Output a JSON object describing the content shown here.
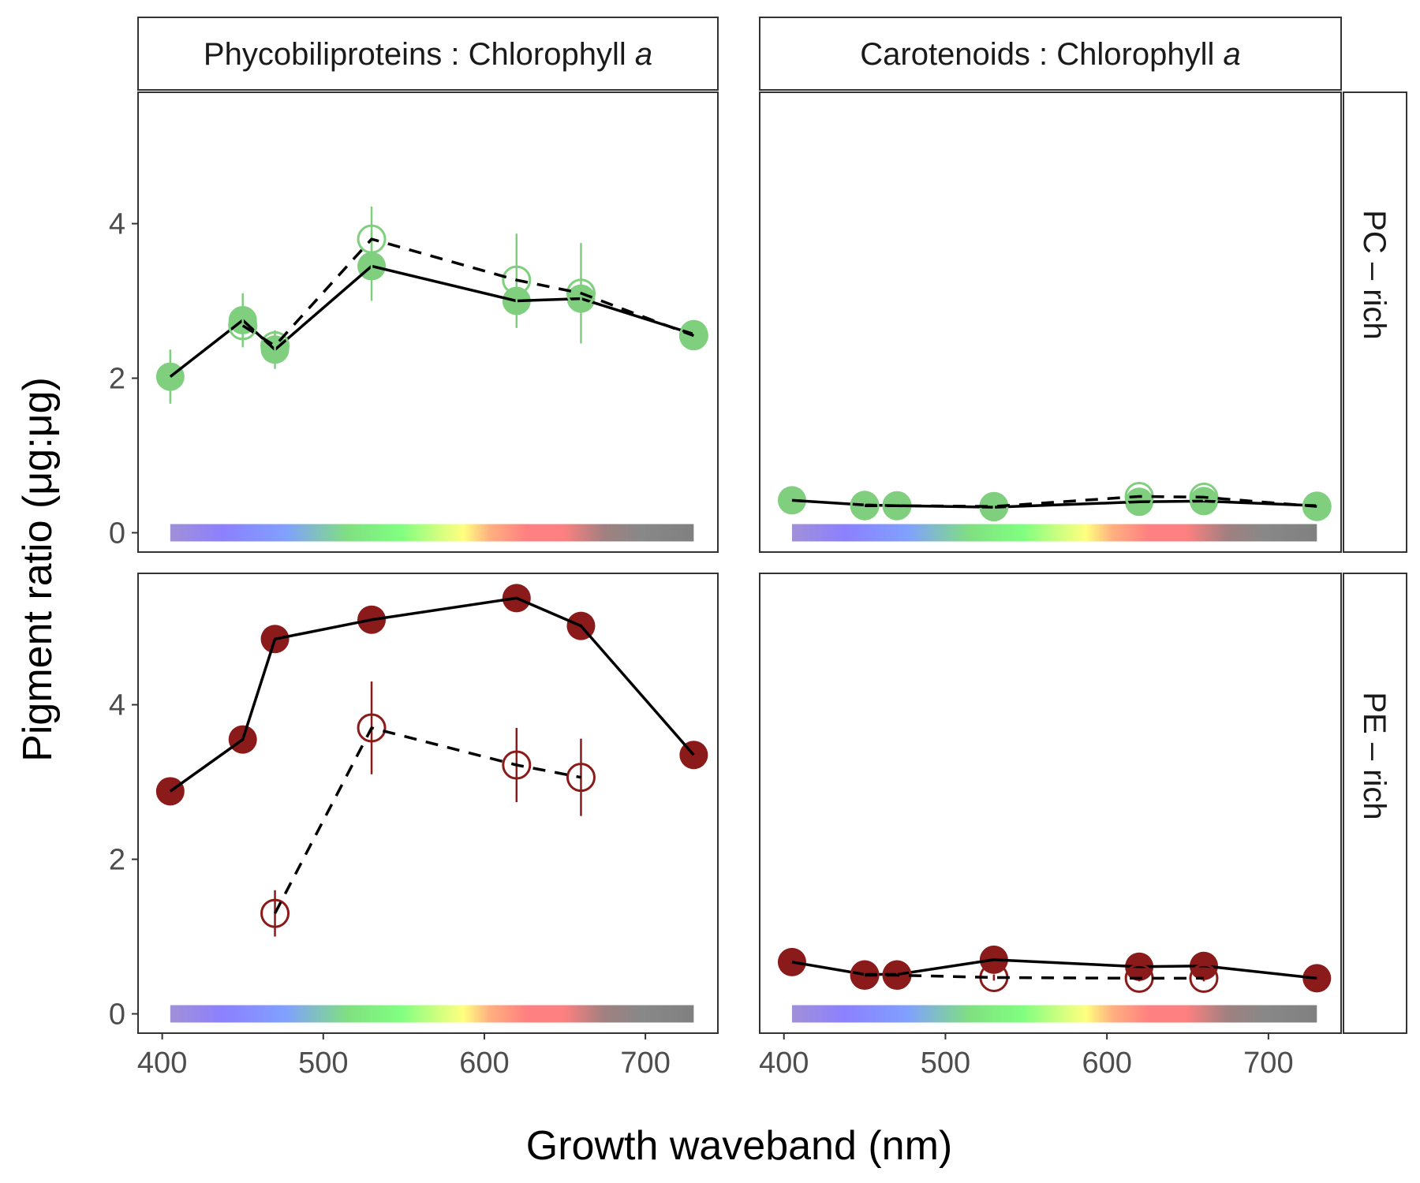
{
  "chart_data": {
    "type": "line",
    "xlabel": "Growth waveband (nm)",
    "ylabel": "Pigment ratio (μg:μg)",
    "xlim": [
      385,
      745
    ],
    "ylim": [
      -0.25,
      5.7
    ],
    "xticks": [
      400,
      500,
      600,
      700
    ],
    "yticks": [
      0,
      2,
      4
    ],
    "columns": [
      {
        "id": "pbp",
        "label_main": "Phycobiliproteins : Chlorophyll ",
        "label_italic": "a"
      },
      {
        "id": "car",
        "label_main": "Carotenoids : Chlorophyll ",
        "label_italic": "a"
      }
    ],
    "rows": [
      {
        "id": "pc",
        "label": "PC – rich",
        "color": "#7fcf7f"
      },
      {
        "id": "pe",
        "label": "PE – rich",
        "color": "#8b1a1a"
      }
    ],
    "spectrum_bar": {
      "x_start": 405,
      "x_end": 730,
      "y": 0
    },
    "panels": [
      {
        "row": "pc",
        "col": "pbp",
        "series": [
          {
            "style": "solid",
            "points": [
              [
                405,
                2.02
              ],
              [
                450,
                2.75
              ],
              [
                470,
                2.37
              ],
              [
                530,
                3.45
              ],
              [
                620,
                3.0
              ],
              [
                660,
                3.03
              ],
              [
                730,
                2.57
              ]
            ],
            "errors": [
              0.35,
              0.35,
              0.25,
              0.45,
              0.35,
              0.0,
              0.15
            ]
          },
          {
            "style": "dashed",
            "points": [
              [
                450,
                2.68
              ],
              [
                470,
                2.42
              ],
              [
                530,
                3.8
              ],
              [
                620,
                3.27
              ],
              [
                660,
                3.1
              ],
              [
                730,
                2.55
              ]
            ],
            "errors": [
              0.15,
              0.15,
              0.42,
              0.6,
              0.65,
              0.1
            ]
          }
        ]
      },
      {
        "row": "pc",
        "col": "car",
        "series": [
          {
            "style": "solid",
            "points": [
              [
                405,
                0.42
              ],
              [
                450,
                0.36
              ],
              [
                470,
                0.35
              ],
              [
                530,
                0.33
              ],
              [
                620,
                0.4
              ],
              [
                660,
                0.41
              ],
              [
                730,
                0.35
              ]
            ],
            "errors": [
              0.03,
              0.03,
              0.03,
              0.04,
              0.04,
              0.04,
              0.03
            ]
          },
          {
            "style": "dashed",
            "points": [
              [
                450,
                0.35
              ],
              [
                470,
                0.35
              ],
              [
                530,
                0.34
              ],
              [
                620,
                0.47
              ],
              [
                660,
                0.46
              ],
              [
                730,
                0.34
              ]
            ],
            "errors": [
              0.03,
              0.03,
              0.03,
              0.05,
              0.05,
              0.03
            ]
          }
        ]
      },
      {
        "row": "pe",
        "col": "pbp",
        "series": [
          {
            "style": "solid",
            "points": [
              [
                405,
                2.88
              ],
              [
                450,
                3.55
              ],
              [
                470,
                4.85
              ],
              [
                530,
                5.1
              ],
              [
                620,
                5.38
              ],
              [
                660,
                5.02
              ],
              [
                730,
                3.35
              ]
            ],
            "errors": [
              0.05,
              0.05,
              0.05,
              0.05,
              0.05,
              0.05,
              0.05
            ]
          },
          {
            "style": "dashed",
            "points": [
              [
                470,
                1.3
              ],
              [
                530,
                3.7
              ],
              [
                620,
                3.22
              ],
              [
                660,
                3.06
              ]
            ],
            "errors": [
              0.3,
              0.6,
              0.48,
              0.5
            ]
          }
        ]
      },
      {
        "row": "pe",
        "col": "car",
        "series": [
          {
            "style": "solid",
            "points": [
              [
                405,
                0.67
              ],
              [
                450,
                0.51
              ],
              [
                470,
                0.51
              ],
              [
                530,
                0.7
              ],
              [
                620,
                0.61
              ],
              [
                660,
                0.62
              ],
              [
                730,
                0.46
              ]
            ],
            "errors": [
              0.03,
              0.03,
              0.03,
              0.04,
              0.04,
              0.04,
              0.03
            ]
          },
          {
            "style": "dashed",
            "points": [
              [
                450,
                0.5
              ],
              [
                470,
                0.5
              ],
              [
                530,
                0.47
              ],
              [
                620,
                0.46
              ],
              [
                660,
                0.46
              ]
            ],
            "errors": [
              0.03,
              0.03,
              0.04,
              0.04,
              0.04
            ]
          }
        ]
      }
    ]
  }
}
